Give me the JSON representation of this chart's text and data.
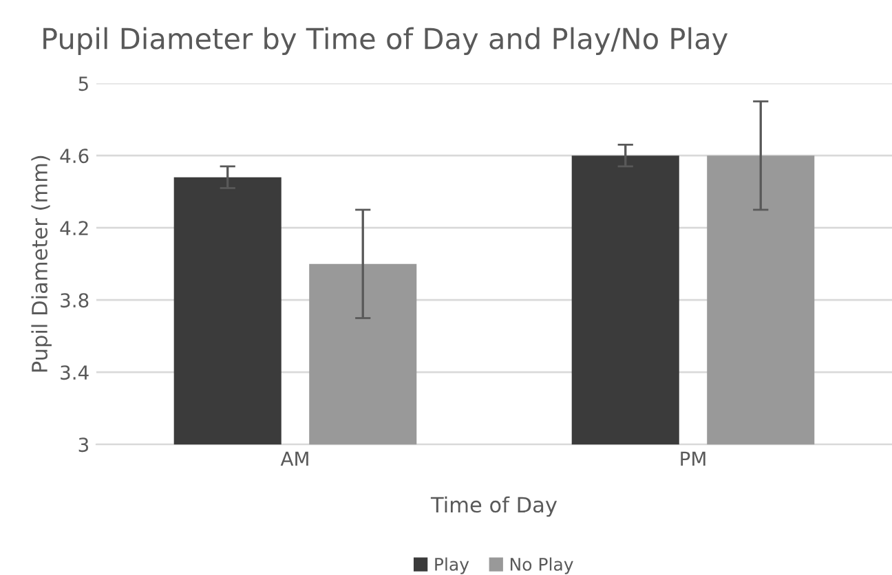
{
  "chart_data": {
    "type": "bar",
    "title": "Pupil Diameter by Time of Day and Play/No Play",
    "xlabel": "Time of Day",
    "ylabel": "Pupil Diameter (mm)",
    "categories": [
      "AM",
      "PM"
    ],
    "series": [
      {
        "name": "Play",
        "color": "#3b3b3b",
        "values": [
          4.48,
          4.6
        ],
        "errors": [
          0.06,
          0.06
        ]
      },
      {
        "name": "No Play",
        "color": "#999999",
        "values": [
          4.0,
          4.6
        ],
        "errors": [
          0.3,
          0.3
        ]
      }
    ],
    "ylim": [
      3,
      5
    ],
    "yticks": [
      3,
      3.4,
      3.8,
      4.2,
      4.6,
      5
    ],
    "grid": "y",
    "legend": "bottom"
  }
}
